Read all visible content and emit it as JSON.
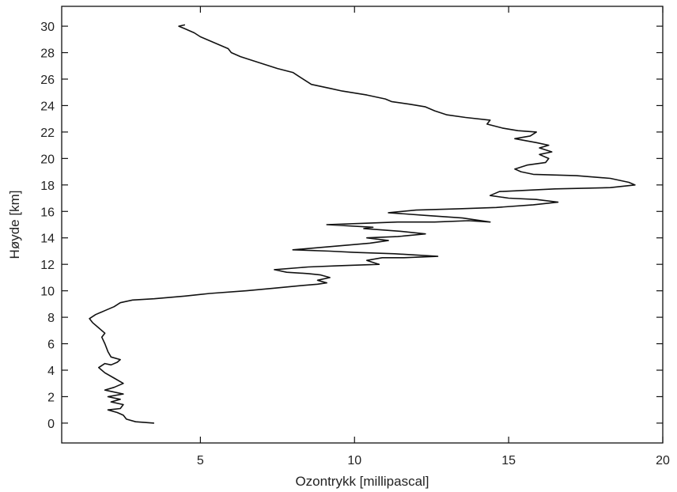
{
  "chart_data": {
    "type": "line",
    "title": "",
    "xlabel": "Ozontrykk [millipascal]",
    "ylabel": "Høyde [km]",
    "xlim": [
      0.5,
      20
    ],
    "ylim": [
      -1.5,
      31.5
    ],
    "xticks": [
      5,
      10,
      15,
      20
    ],
    "yticks": [
      0,
      2,
      4,
      6,
      8,
      10,
      12,
      14,
      16,
      18,
      20,
      22,
      24,
      26,
      28,
      30
    ],
    "grid": false,
    "legend": "none",
    "series": [
      {
        "color": "#111111",
        "points": [
          [
            3.5,
            0.0
          ],
          [
            2.9,
            0.1
          ],
          [
            2.6,
            0.3
          ],
          [
            2.5,
            0.6
          ],
          [
            2.3,
            0.8
          ],
          [
            2.0,
            1.0
          ],
          [
            2.4,
            1.1
          ],
          [
            2.5,
            1.4
          ],
          [
            2.1,
            1.6
          ],
          [
            2.4,
            1.8
          ],
          [
            2.0,
            2.0
          ],
          [
            2.5,
            2.2
          ],
          [
            2.1,
            2.4
          ],
          [
            1.9,
            2.5
          ],
          [
            2.2,
            2.7
          ],
          [
            2.5,
            3.0
          ],
          [
            2.2,
            3.4
          ],
          [
            1.9,
            3.8
          ],
          [
            1.7,
            4.2
          ],
          [
            1.9,
            4.5
          ],
          [
            2.1,
            4.4
          ],
          [
            2.3,
            4.6
          ],
          [
            2.4,
            4.8
          ],
          [
            2.1,
            5.0
          ],
          [
            2.0,
            5.4
          ],
          [
            1.9,
            6.0
          ],
          [
            1.8,
            6.5
          ],
          [
            1.9,
            6.8
          ],
          [
            1.7,
            7.2
          ],
          [
            1.5,
            7.6
          ],
          [
            1.4,
            7.9
          ],
          [
            1.6,
            8.2
          ],
          [
            1.9,
            8.5
          ],
          [
            2.2,
            8.8
          ],
          [
            2.4,
            9.1
          ],
          [
            2.8,
            9.3
          ],
          [
            3.5,
            9.4
          ],
          [
            4.5,
            9.6
          ],
          [
            5.3,
            9.8
          ],
          [
            6.5,
            10.0
          ],
          [
            7.4,
            10.2
          ],
          [
            8.3,
            10.4
          ],
          [
            8.8,
            10.5
          ],
          [
            9.1,
            10.6
          ],
          [
            8.8,
            10.8
          ],
          [
            9.2,
            11.0
          ],
          [
            8.9,
            11.2
          ],
          [
            8.5,
            11.3
          ],
          [
            7.8,
            11.4
          ],
          [
            7.4,
            11.6
          ],
          [
            8.5,
            11.8
          ],
          [
            9.5,
            11.9
          ],
          [
            10.8,
            12.0
          ],
          [
            10.4,
            12.3
          ],
          [
            10.9,
            12.5
          ],
          [
            11.6,
            12.5
          ],
          [
            12.7,
            12.6
          ],
          [
            11.3,
            12.8
          ],
          [
            10.0,
            12.9
          ],
          [
            9.2,
            13.0
          ],
          [
            8.0,
            13.1
          ],
          [
            9.5,
            13.4
          ],
          [
            10.5,
            13.6
          ],
          [
            11.1,
            13.8
          ],
          [
            10.4,
            14.0
          ],
          [
            11.4,
            14.1
          ],
          [
            12.3,
            14.3
          ],
          [
            11.5,
            14.5
          ],
          [
            10.9,
            14.6
          ],
          [
            10.3,
            14.7
          ],
          [
            10.6,
            14.8
          ],
          [
            9.1,
            15.0
          ],
          [
            10.3,
            15.1
          ],
          [
            11.4,
            15.2
          ],
          [
            12.6,
            15.2
          ],
          [
            13.7,
            15.3
          ],
          [
            14.4,
            15.2
          ],
          [
            13.5,
            15.5
          ],
          [
            12.3,
            15.7
          ],
          [
            11.1,
            15.9
          ],
          [
            12.0,
            16.1
          ],
          [
            13.4,
            16.2
          ],
          [
            14.6,
            16.3
          ],
          [
            15.8,
            16.5
          ],
          [
            16.6,
            16.7
          ],
          [
            15.9,
            16.9
          ],
          [
            15.0,
            17.0
          ],
          [
            14.4,
            17.2
          ],
          [
            14.7,
            17.5
          ],
          [
            16.5,
            17.7
          ],
          [
            18.3,
            17.8
          ],
          [
            19.1,
            18.0
          ],
          [
            18.9,
            18.2
          ],
          [
            18.3,
            18.5
          ],
          [
            17.2,
            18.7
          ],
          [
            15.8,
            18.8
          ],
          [
            15.4,
            19.0
          ],
          [
            15.2,
            19.2
          ],
          [
            15.6,
            19.5
          ],
          [
            16.2,
            19.7
          ],
          [
            16.3,
            20.0
          ],
          [
            16.0,
            20.3
          ],
          [
            16.4,
            20.5
          ],
          [
            16.0,
            20.8
          ],
          [
            16.3,
            21.0
          ],
          [
            15.9,
            21.2
          ],
          [
            15.2,
            21.5
          ],
          [
            15.7,
            21.7
          ],
          [
            15.9,
            22.0
          ],
          [
            15.3,
            22.1
          ],
          [
            14.8,
            22.3
          ],
          [
            14.3,
            22.6
          ],
          [
            14.4,
            22.9
          ],
          [
            13.6,
            23.1
          ],
          [
            13.0,
            23.3
          ],
          [
            12.6,
            23.6
          ],
          [
            12.3,
            23.9
          ],
          [
            11.8,
            24.1
          ],
          [
            11.2,
            24.3
          ],
          [
            11.0,
            24.5
          ],
          [
            10.4,
            24.8
          ],
          [
            9.6,
            25.1
          ],
          [
            9.2,
            25.3
          ],
          [
            8.6,
            25.6
          ],
          [
            8.4,
            25.9
          ],
          [
            8.2,
            26.2
          ],
          [
            8.0,
            26.5
          ],
          [
            7.5,
            26.8
          ],
          [
            7.1,
            27.1
          ],
          [
            6.7,
            27.4
          ],
          [
            6.3,
            27.7
          ],
          [
            6.0,
            28.0
          ],
          [
            5.9,
            28.3
          ],
          [
            5.6,
            28.6
          ],
          [
            5.3,
            28.9
          ],
          [
            5.0,
            29.2
          ],
          [
            4.8,
            29.5
          ],
          [
            4.5,
            29.8
          ],
          [
            4.3,
            30.0
          ],
          [
            4.5,
            30.1
          ]
        ]
      }
    ]
  }
}
